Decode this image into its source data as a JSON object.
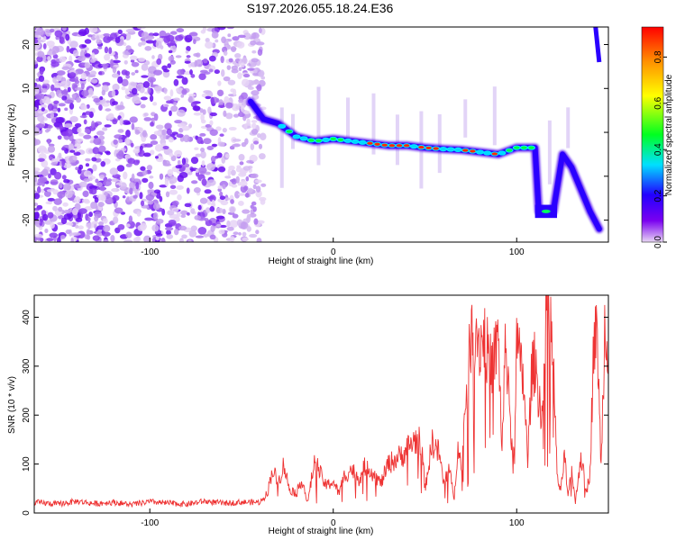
{
  "title": "S197.2026.055.18.24.E36",
  "chart_data": [
    {
      "type": "heatmap",
      "xlabel": "Height of straight line (km)",
      "ylabel": "Frequency (Hz)",
      "xlim": [
        -163,
        150
      ],
      "ylim": [
        -25,
        24
      ],
      "xticks": [
        -100,
        0,
        100
      ],
      "yticks": [
        -20,
        -10,
        0,
        10,
        20
      ],
      "colorbar": {
        "label": "Normalized spectral amplitude",
        "range": [
          0,
          0.93
        ],
        "ticks": [
          0.0,
          0.2,
          0.4,
          0.6,
          0.8
        ],
        "colormap": [
          "#e8d6f4",
          "#7a00f0",
          "#2200ff",
          "#00e0ff",
          "#00ff20",
          "#ffff00",
          "#ff9000",
          "#ff0000"
        ]
      },
      "ridge": {
        "x": [
          -45,
          -38,
          -30,
          -20,
          -10,
          0,
          10,
          20,
          30,
          40,
          50,
          60,
          70,
          80,
          90,
          100,
          110,
          112,
          120,
          125,
          130,
          140,
          145
        ],
        "y": [
          7,
          3,
          2,
          -1,
          -2,
          -1.5,
          -2,
          -2.5,
          -3,
          -3,
          -3.5,
          -3.8,
          -4,
          -4.5,
          -5,
          -3.5,
          -3.5,
          -18,
          -18,
          -5,
          -8,
          -18,
          -22
        ]
      }
    },
    {
      "type": "line",
      "xlabel": "Height of straight line (km)",
      "ylabel": "SNR (10 * v/v)",
      "xlim": [
        -163,
        150
      ],
      "ylim": [
        0,
        445
      ],
      "xticks": [
        -100,
        0,
        100
      ],
      "yticks": [
        0,
        100,
        200,
        300,
        400
      ],
      "series": [
        {
          "name": "SNR",
          "color": "#ee3333",
          "x": [
            -163,
            -150,
            -140,
            -130,
            -120,
            -110,
            -100,
            -90,
            -80,
            -70,
            -60,
            -50,
            -40,
            -36,
            -33,
            -30,
            -27,
            -24,
            -20,
            -17,
            -14,
            -10,
            -7,
            -4,
            0,
            3,
            6,
            10,
            14,
            18,
            22,
            26,
            30,
            34,
            38,
            42,
            45,
            48,
            50,
            54,
            58,
            60,
            63,
            66,
            68,
            70,
            72,
            73,
            75,
            78,
            80,
            82,
            84,
            86,
            88,
            90,
            92,
            94,
            96,
            98,
            100,
            102,
            104,
            106,
            108,
            110,
            112,
            114,
            116,
            118,
            120,
            122,
            124,
            126,
            128,
            130,
            132,
            135,
            138,
            140,
            142,
            144,
            146,
            148,
            150
          ],
          "y": [
            22,
            18,
            24,
            19,
            22,
            17,
            23,
            20,
            18,
            24,
            20,
            22,
            22,
            40,
            90,
            60,
            100,
            50,
            40,
            70,
            20,
            110,
            80,
            55,
            65,
            40,
            75,
            90,
            70,
            100,
            80,
            60,
            100,
            110,
            120,
            140,
            150,
            145,
            50,
            145,
            120,
            60,
            90,
            30,
            150,
            80,
            230,
            260,
            360,
            380,
            340,
            370,
            330,
            300,
            320,
            360,
            130,
            350,
            240,
            80,
            350,
            300,
            260,
            100,
            280,
            310,
            240,
            200,
            400,
            420,
            300,
            80,
            40,
            120,
            30,
            90,
            20,
            120,
            40,
            85,
            350,
            360,
            90,
            380,
            330
          ]
        }
      ]
    }
  ]
}
